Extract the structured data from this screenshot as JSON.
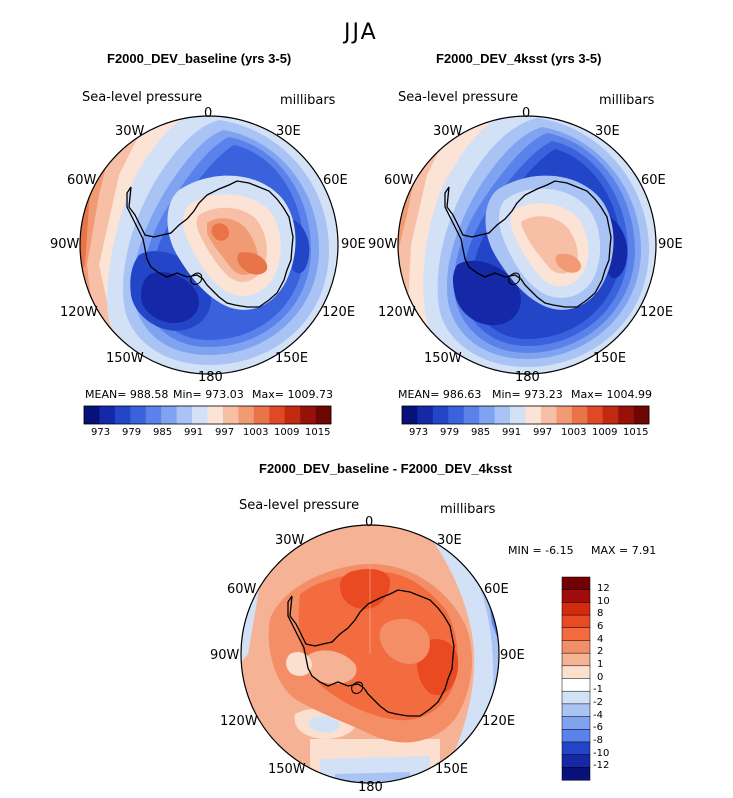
{
  "figure_title": "JJA",
  "panels": [
    {
      "title": "F2000_DEV_baseline (yrs 3-5)",
      "variable": "Sea-level pressure",
      "units": "millibars",
      "lon_labels": [
        "0",
        "30E",
        "60E",
        "90E",
        "120E",
        "150E",
        "180",
        "150W",
        "120W",
        "90W",
        "60W",
        "30W"
      ],
      "stats": {
        "mean": "MEAN= 988.58",
        "min": "Min= 973.03",
        "max": "Max= 1009.73"
      },
      "colorbar_ticks": [
        "973",
        "979",
        "985",
        "991",
        "997",
        "1003",
        "1009",
        "1015"
      ]
    },
    {
      "title": "F2000_DEV_4ksst (yrs 3-5)",
      "variable": "Sea-level pressure",
      "units": "millibars",
      "lon_labels": [
        "0",
        "30E",
        "60E",
        "90E",
        "120E",
        "150E",
        "180",
        "150W",
        "120W",
        "90W",
        "60W",
        "30W"
      ],
      "stats": {
        "mean": "MEAN= 986.63",
        "min": "Min= 973.23",
        "max": "Max= 1004.99"
      },
      "colorbar_ticks": [
        "973",
        "979",
        "985",
        "991",
        "997",
        "1003",
        "1009",
        "1015"
      ]
    },
    {
      "title": "F2000_DEV_baseline - F2000_DEV_4ksst",
      "variable": "Sea-level pressure",
      "units": "millibars",
      "lon_labels": [
        "0",
        "30E",
        "60E",
        "90E",
        "120E",
        "150E",
        "180",
        "150W",
        "120W",
        "90W",
        "60W",
        "30W"
      ],
      "stats": {
        "min": "MIN =   -6.15",
        "max": "MAX =    7.91"
      },
      "colorbar_ticks": [
        "12",
        "10",
        "8",
        "6",
        "4",
        "2",
        "1",
        "0",
        "-1",
        "-2",
        "-4",
        "-6",
        "-8",
        "-10",
        "-12"
      ]
    }
  ],
  "palettes": {
    "abs": [
      "#08117a",
      "#1428a8",
      "#2346c8",
      "#3a62dc",
      "#5a82ea",
      "#7fa3f0",
      "#a9c3f4",
      "#d3e1f7",
      "#fbe3d6",
      "#f7bfa5",
      "#f19b75",
      "#ea744a",
      "#de4a25",
      "#c12a10",
      "#97110a",
      "#6e0604"
    ],
    "diff": [
      "#720000",
      "#a00c0c",
      "#d42a10",
      "#ea4a22",
      "#f26c40",
      "#f48e66",
      "#f6b294",
      "#fbe0cf",
      "#ffffff",
      "#d3e1f7",
      "#a9c3f4",
      "#7fa3f0",
      "#5a82ea",
      "#2346c8",
      "#1428a8",
      "#08117a"
    ]
  }
}
